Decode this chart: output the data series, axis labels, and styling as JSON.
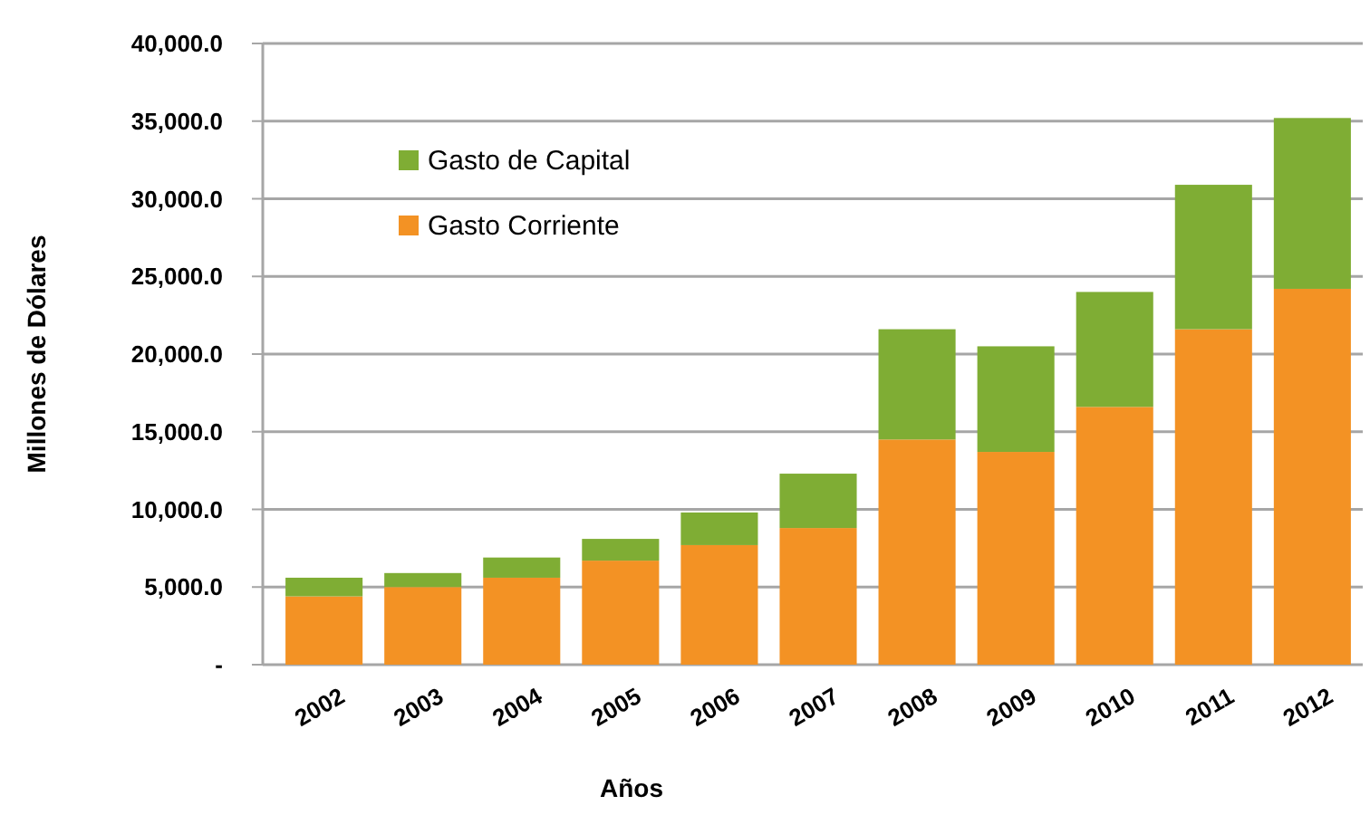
{
  "chart_data": {
    "type": "bar",
    "stacked": true,
    "xlabel": "Años",
    "ylabel": "Millones de Dólares",
    "categories": [
      "2002",
      "2003",
      "2004",
      "2005",
      "2006",
      "2007",
      "2008",
      "2009",
      "2010",
      "2011",
      "2012"
    ],
    "series": [
      {
        "name": "Gasto Corriente",
        "color": "#f39224",
        "values": [
          4400,
          5000,
          5600,
          6700,
          7700,
          8800,
          14500,
          13700,
          16600,
          21600,
          24200
        ]
      },
      {
        "name": "Gasto de Capital",
        "color": "#7fad34",
        "values": [
          1200,
          900,
          1300,
          1400,
          2100,
          3500,
          7100,
          6800,
          7400,
          9300,
          11000
        ]
      }
    ],
    "ylim": [
      0,
      40000
    ],
    "yticks": [
      {
        "value": 0,
        "label": "-"
      },
      {
        "value": 5000,
        "label": "5,000.0"
      },
      {
        "value": 10000,
        "label": "10,000.0"
      },
      {
        "value": 15000,
        "label": "15,000.0"
      },
      {
        "value": 20000,
        "label": "20,000.0"
      },
      {
        "value": 25000,
        "label": "25,000.0"
      },
      {
        "value": 30000,
        "label": "30,000.0"
      },
      {
        "value": 35000,
        "label": "35,000.0"
      },
      {
        "value": 40000,
        "label": "40,000.0"
      }
    ],
    "grid": "y",
    "legend": "top left"
  }
}
